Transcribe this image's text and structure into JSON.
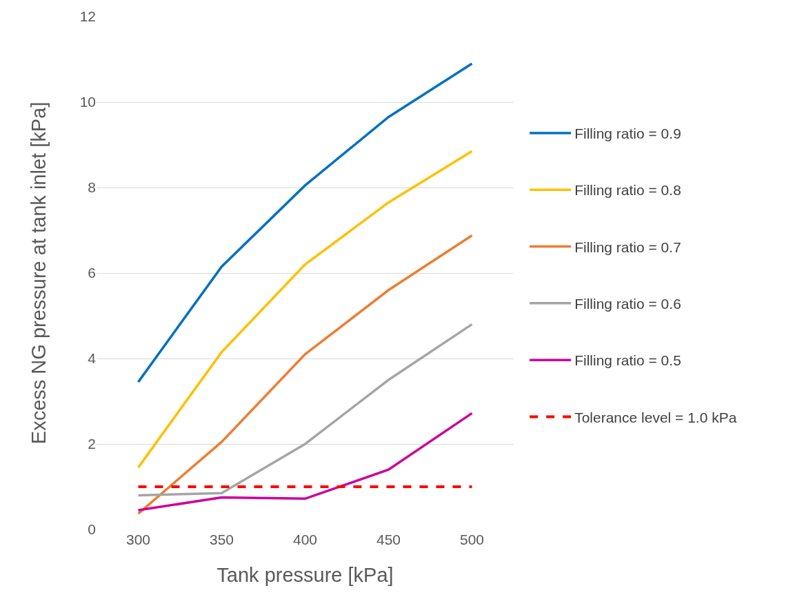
{
  "chart_data": {
    "type": "line",
    "xlabel": "Tank pressure [kPa]",
    "ylabel": "Excess NG pressure at tank inlet [kPa]",
    "categories": [
      "300",
      "350",
      "400",
      "450",
      "500"
    ],
    "series": [
      {
        "name": "Filling ratio = 0.9",
        "color": "#0070c0",
        "values": [
          3.45,
          6.15,
          8.05,
          9.65,
          10.9
        ]
      },
      {
        "name": "Filling ratio = 0.8",
        "color": "#ffc000",
        "values": [
          1.45,
          4.15,
          6.2,
          7.65,
          8.85
        ]
      },
      {
        "name": "Filling ratio = 0.7",
        "color": "#ed7d31",
        "values": [
          0.37,
          2.05,
          4.1,
          5.6,
          6.88
        ]
      },
      {
        "name": "Filling ratio = 0.6",
        "color": "#a5a5a5",
        "values": [
          0.8,
          0.85,
          2.0,
          3.5,
          4.8
        ]
      },
      {
        "name": "Filling ratio = 0.5",
        "color": "#cc0099",
        "values": [
          0.45,
          0.75,
          0.72,
          1.4,
          2.72
        ]
      },
      {
        "name": "Tolerance level = 1.0 kPa",
        "color": "#ff0000",
        "values": [
          1.0,
          1.0,
          1.0,
          1.0,
          1.0
        ],
        "line_style": "dashed"
      }
    ],
    "ylim": [
      0,
      12
    ],
    "yticks": [
      0,
      2,
      4,
      6,
      8,
      10,
      12
    ],
    "grid": "y",
    "legend": "right",
    "marker": "none",
    "line_style": "solid"
  }
}
